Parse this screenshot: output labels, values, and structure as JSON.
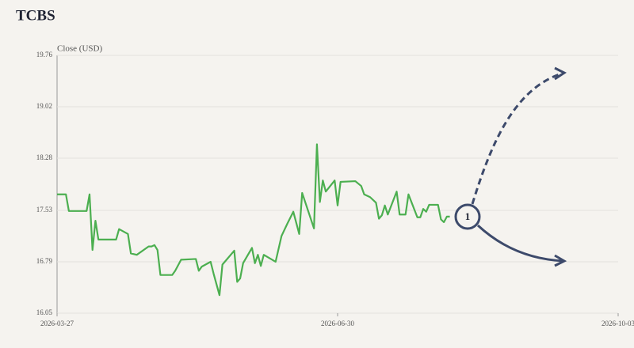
{
  "chart_data": {
    "type": "line",
    "title": "TCBS",
    "y_label": "Close (USD)",
    "x": [
      "2026-03-27",
      "2026-03-30",
      "2026-03-31",
      "2026-04-06",
      "2026-04-07",
      "2026-04-08",
      "2026-04-09",
      "2026-04-10",
      "2026-04-16",
      "2026-04-17",
      "2026-04-20",
      "2026-04-21",
      "2026-04-23",
      "2026-04-27",
      "2026-04-28",
      "2026-04-29",
      "2026-04-30",
      "2026-05-01",
      "2026-05-05",
      "2026-05-06",
      "2026-05-08",
      "2026-05-13",
      "2026-05-14",
      "2026-05-15",
      "2026-05-18",
      "2026-05-19",
      "2026-05-21",
      "2026-05-22",
      "2026-05-26",
      "2026-05-27",
      "2026-05-28",
      "2026-05-29",
      "2026-06-01",
      "2026-06-02",
      "2026-06-03",
      "2026-06-04",
      "2026-06-05",
      "2026-06-09",
      "2026-06-11",
      "2026-06-13",
      "2026-06-15",
      "2026-06-17",
      "2026-06-18",
      "2026-06-22",
      "2026-06-23",
      "2026-06-24",
      "2026-06-25",
      "2026-06-26",
      "2026-06-29",
      "2026-06-30",
      "2026-07-01",
      "2026-07-06",
      "2026-07-08",
      "2026-07-09",
      "2026-07-11",
      "2026-07-13",
      "2026-07-14",
      "2026-07-15",
      "2026-07-16",
      "2026-07-17",
      "2026-07-20",
      "2026-07-21",
      "2026-07-23",
      "2026-07-24",
      "2026-07-27",
      "2026-07-28",
      "2026-07-29",
      "2026-07-30",
      "2026-07-31",
      "2026-08-03",
      "2026-08-04",
      "2026-08-05",
      "2026-08-06",
      "2026-08-07"
    ],
    "series": [
      {
        "name": "Close",
        "color": "#4caf50",
        "values": [
          17.76,
          17.76,
          17.52,
          17.52,
          17.76,
          16.96,
          17.38,
          17.11,
          17.11,
          17.26,
          17.19,
          16.91,
          16.89,
          17.01,
          17.01,
          17.03,
          16.96,
          16.6,
          16.6,
          16.66,
          16.82,
          16.83,
          16.66,
          16.72,
          16.79,
          16.62,
          16.31,
          16.75,
          16.95,
          16.5,
          16.55,
          16.77,
          16.99,
          16.77,
          16.89,
          16.73,
          16.89,
          16.79,
          17.16,
          17.34,
          17.51,
          17.19,
          17.78,
          17.27,
          18.48,
          17.65,
          17.96,
          17.8,
          17.96,
          17.6,
          17.94,
          17.95,
          17.88,
          17.76,
          17.72,
          17.64,
          17.41,
          17.46,
          17.6,
          17.47,
          17.8,
          17.47,
          17.47,
          17.76,
          17.43,
          17.43,
          17.55,
          17.51,
          17.61,
          17.61,
          17.4,
          17.36,
          17.44,
          17.44
        ]
      }
    ],
    "xlim": [
      "2026-03-27",
      "2026-10-03"
    ],
    "xticks": [
      "2026-03-27",
      "2026-06-30",
      "2026-10-03"
    ],
    "ylim": [
      16.05,
      19.76
    ],
    "yticks": [
      16.05,
      16.79,
      17.53,
      18.28,
      19.02,
      19.76
    ],
    "grid": true,
    "annotation": "1"
  }
}
